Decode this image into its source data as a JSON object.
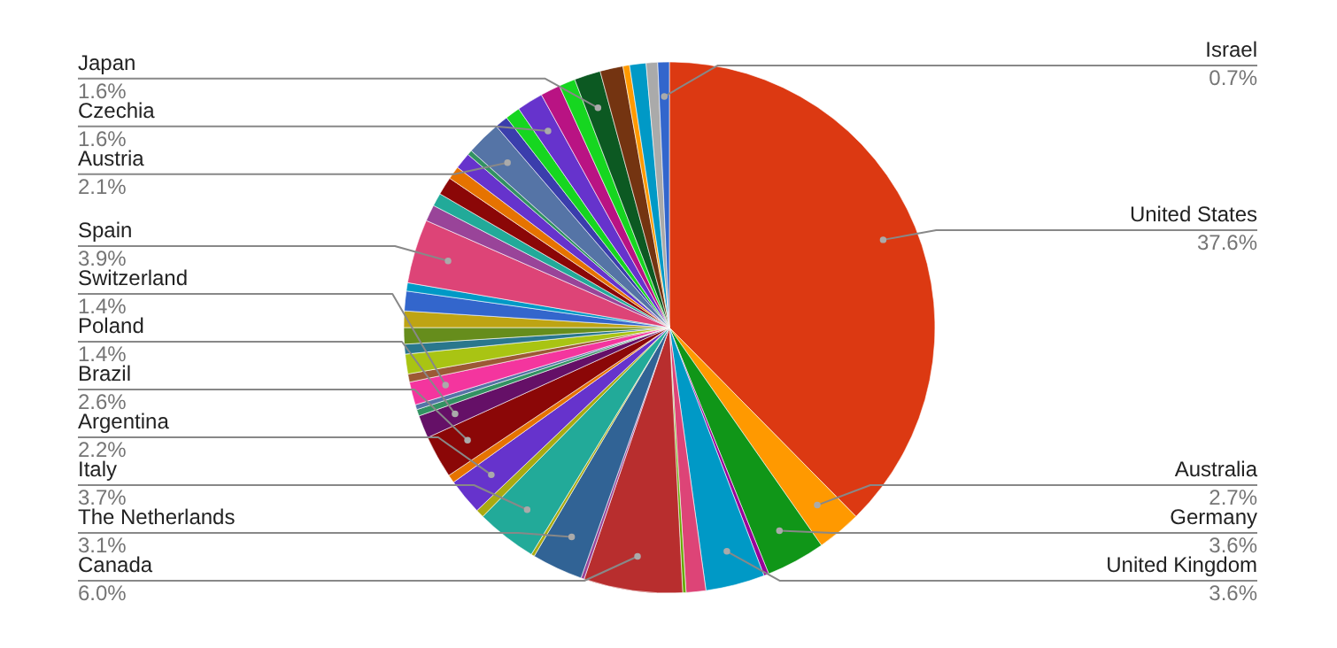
{
  "chart_data": {
    "type": "pie",
    "categories": [
      "United States",
      "Australia",
      "Germany",
      null,
      "United Kingdom",
      null,
      null,
      "Canada",
      null,
      "The Netherlands",
      null,
      "Italy",
      null,
      "Argentina",
      null,
      "Brazil",
      "Poland",
      null,
      null,
      "Switzerland",
      null,
      null,
      null,
      null,
      null,
      null,
      null,
      "Spain",
      null,
      null,
      null,
      null,
      null,
      null,
      "Austria",
      null,
      null,
      "Czechia",
      null,
      null,
      "Japan",
      null,
      null,
      null,
      null,
      "Israel"
    ],
    "values": [
      37.6,
      2.7,
      3.6,
      0.3,
      3.6,
      1.2,
      0.2,
      6.0,
      0.2,
      3.1,
      0.2,
      3.7,
      0.5,
      2.2,
      0.5,
      2.6,
      1.4,
      0.4,
      0.3,
      1.4,
      0.5,
      1.2,
      0.6,
      1.0,
      1.0,
      1.2,
      0.5,
      3.9,
      1.0,
      0.8,
      1.1,
      0.8,
      1.0,
      0.3,
      2.1,
      0.8,
      0.9,
      1.6,
      1.2,
      1.0,
      1.6,
      1.4,
      0.4,
      1.0,
      0.7,
      0.7
    ],
    "value_labels": [
      "37.6%",
      "2.7%",
      "3.6%",
      null,
      "3.6%",
      null,
      null,
      "6.0%",
      null,
      "3.1%",
      null,
      "3.7%",
      null,
      "2.2%",
      null,
      "2.6%",
      "1.4%",
      null,
      null,
      "1.4%",
      null,
      null,
      null,
      null,
      null,
      null,
      null,
      "3.9%",
      null,
      null,
      null,
      null,
      null,
      null,
      "2.1%",
      null,
      null,
      "1.6%",
      null,
      null,
      "1.6%",
      null,
      null,
      null,
      null,
      "0.7%"
    ],
    "colors": [
      "#dc3912",
      "#ff9900",
      "#109618",
      "#990099",
      "#0099c6",
      "#dd4477",
      "#66aa00",
      "#b82e2e",
      "#994499",
      "#316395",
      "#aaaa11",
      "#22aa99",
      "#aaaa11",
      "#6633cc",
      "#e67300",
      "#8b0707",
      "#651067",
      "#329262",
      "#5574a6",
      "#f4359e",
      "#9c5935",
      "#a9c413",
      "#2a778d",
      "#668d1c",
      "#bea413",
      "#3366cc",
      "#0099c6",
      "#dd4477",
      "#994499",
      "#22aa99",
      "#8b0707",
      "#e67300",
      "#6633cc",
      "#329262",
      "#5574a6",
      "#3b3eac",
      "#16d620",
      "#6633cc",
      "#b91383",
      "#16d620",
      "#0c5922",
      "#743411",
      "#ff9900",
      "#0099c6",
      "#aaaaaa",
      "#3366cc"
    ]
  }
}
